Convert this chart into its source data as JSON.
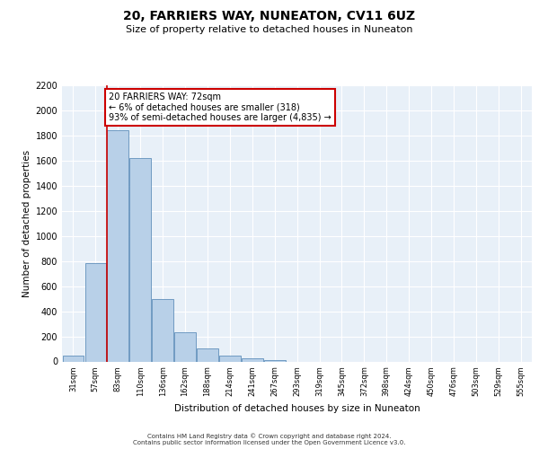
{
  "title1": "20, FARRIERS WAY, NUNEATON, CV11 6UZ",
  "title2": "Size of property relative to detached houses in Nuneaton",
  "xlabel": "Distribution of detached houses by size in Nuneaton",
  "ylabel": "Number of detached properties",
  "categories": [
    "31sqm",
    "57sqm",
    "83sqm",
    "110sqm",
    "136sqm",
    "162sqm",
    "188sqm",
    "214sqm",
    "241sqm",
    "267sqm",
    "293sqm",
    "319sqm",
    "345sqm",
    "372sqm",
    "398sqm",
    "424sqm",
    "450sqm",
    "476sqm",
    "503sqm",
    "529sqm",
    "555sqm"
  ],
  "values": [
    45,
    780,
    1840,
    1620,
    500,
    235,
    105,
    50,
    27,
    12,
    0,
    0,
    0,
    0,
    0,
    0,
    0,
    0,
    0,
    0,
    0
  ],
  "bar_color": "#b8d0e8",
  "bar_edge_color": "#6090bb",
  "ylim_max": 2200,
  "yticks": [
    0,
    200,
    400,
    600,
    800,
    1000,
    1200,
    1400,
    1600,
    1800,
    2000,
    2200
  ],
  "red_line_x": 1.5,
  "annotation_line1": "20 FARRIERS WAY: 72sqm",
  "annotation_line2": "← 6% of detached houses are smaller (318)",
  "annotation_line3": "93% of semi-detached houses are larger (4,835) →",
  "footer1": "Contains HM Land Registry data © Crown copyright and database right 2024.",
  "footer2": "Contains public sector information licensed under the Open Government Licence v3.0.",
  "bg_color": "#e8f0f8",
  "grid_color": "#ffffff",
  "ann_border_color": "#cc0000",
  "red_line_color": "#cc0000"
}
